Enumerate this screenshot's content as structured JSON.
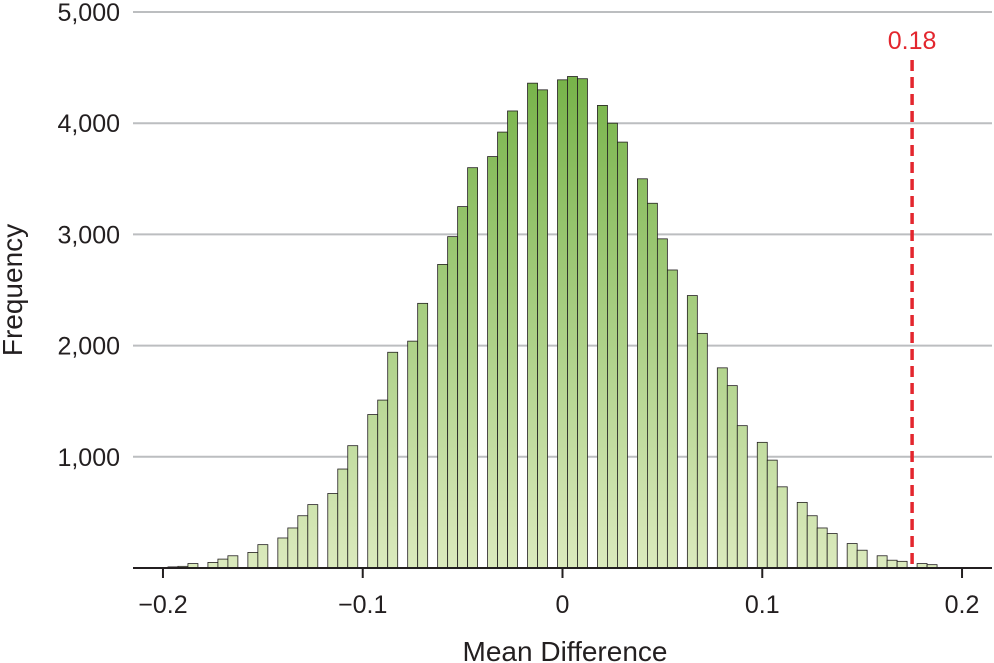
{
  "chart_data": {
    "type": "bar",
    "xlabel": "Mean Difference",
    "ylabel": "Frequency",
    "xlim": [
      -0.215,
      0.215
    ],
    "ylim": [
      0,
      5000
    ],
    "grid": "horizontal",
    "x_ticks": [
      -0.2,
      -0.1,
      0,
      0.1,
      0.2
    ],
    "x_tick_labels": [
      "−0.2",
      "−0.1",
      "0",
      "0.1",
      "0.2"
    ],
    "y_ticks": [
      1000,
      2000,
      3000,
      4000,
      5000
    ],
    "y_tick_labels": [
      "1,000",
      "2,000",
      "3,000",
      "4,000",
      "5,000"
    ],
    "bin_width": 0.005,
    "bins": [
      {
        "x": -0.195,
        "value": 10
      },
      {
        "x": -0.19,
        "value": 15
      },
      {
        "x": -0.185,
        "value": 40
      },
      {
        "x": -0.18,
        "value": 0
      },
      {
        "x": -0.175,
        "value": 50
      },
      {
        "x": -0.17,
        "value": 80
      },
      {
        "x": -0.165,
        "value": 110
      },
      {
        "x": -0.16,
        "value": 0
      },
      {
        "x": -0.155,
        "value": 140
      },
      {
        "x": -0.15,
        "value": 210
      },
      {
        "x": -0.145,
        "value": 0
      },
      {
        "x": -0.14,
        "value": 270
      },
      {
        "x": -0.135,
        "value": 360
      },
      {
        "x": -0.13,
        "value": 470
      },
      {
        "x": -0.125,
        "value": 570
      },
      {
        "x": -0.12,
        "value": 0
      },
      {
        "x": -0.115,
        "value": 670
      },
      {
        "x": -0.11,
        "value": 890
      },
      {
        "x": -0.105,
        "value": 1100
      },
      {
        "x": -0.1,
        "value": 0
      },
      {
        "x": -0.095,
        "value": 1380
      },
      {
        "x": -0.09,
        "value": 1510
      },
      {
        "x": -0.085,
        "value": 1940
      },
      {
        "x": -0.08,
        "value": 0
      },
      {
        "x": -0.075,
        "value": 2040
      },
      {
        "x": -0.07,
        "value": 2380
      },
      {
        "x": -0.065,
        "value": 0
      },
      {
        "x": -0.06,
        "value": 2730
      },
      {
        "x": -0.055,
        "value": 2980
      },
      {
        "x": -0.05,
        "value": 3250
      },
      {
        "x": -0.045,
        "value": 3600
      },
      {
        "x": -0.04,
        "value": 0
      },
      {
        "x": -0.035,
        "value": 3700
      },
      {
        "x": -0.03,
        "value": 3920
      },
      {
        "x": -0.025,
        "value": 4110
      },
      {
        "x": -0.02,
        "value": 0
      },
      {
        "x": -0.015,
        "value": 4360
      },
      {
        "x": -0.01,
        "value": 4300
      },
      {
        "x": -0.005,
        "value": 0
      },
      {
        "x": 0.0,
        "value": 4390
      },
      {
        "x": 0.005,
        "value": 4420
      },
      {
        "x": 0.01,
        "value": 4400
      },
      {
        "x": 0.015,
        "value": 0
      },
      {
        "x": 0.02,
        "value": 4160
      },
      {
        "x": 0.025,
        "value": 4000
      },
      {
        "x": 0.03,
        "value": 3830
      },
      {
        "x": 0.035,
        "value": 0
      },
      {
        "x": 0.04,
        "value": 3500
      },
      {
        "x": 0.045,
        "value": 3280
      },
      {
        "x": 0.05,
        "value": 2960
      },
      {
        "x": 0.055,
        "value": 2680
      },
      {
        "x": 0.06,
        "value": 0
      },
      {
        "x": 0.065,
        "value": 2450
      },
      {
        "x": 0.07,
        "value": 2110
      },
      {
        "x": 0.075,
        "value": 0
      },
      {
        "x": 0.08,
        "value": 1800
      },
      {
        "x": 0.085,
        "value": 1640
      },
      {
        "x": 0.09,
        "value": 1280
      },
      {
        "x": 0.095,
        "value": 0
      },
      {
        "x": 0.1,
        "value": 1130
      },
      {
        "x": 0.105,
        "value": 970
      },
      {
        "x": 0.11,
        "value": 730
      },
      {
        "x": 0.115,
        "value": 0
      },
      {
        "x": 0.12,
        "value": 590
      },
      {
        "x": 0.125,
        "value": 470
      },
      {
        "x": 0.13,
        "value": 360
      },
      {
        "x": 0.135,
        "value": 310
      },
      {
        "x": 0.14,
        "value": 0
      },
      {
        "x": 0.145,
        "value": 220
      },
      {
        "x": 0.15,
        "value": 160
      },
      {
        "x": 0.155,
        "value": 0
      },
      {
        "x": 0.16,
        "value": 110
      },
      {
        "x": 0.165,
        "value": 70
      },
      {
        "x": 0.17,
        "value": 60
      },
      {
        "x": 0.175,
        "value": 0
      },
      {
        "x": 0.18,
        "value": 40
      },
      {
        "x": 0.185,
        "value": 30
      }
    ],
    "annotations": [
      {
        "type": "vline",
        "x": 0.175,
        "label": "0.18",
        "color": "#e3262e",
        "style": "dashed"
      }
    ],
    "colors": {
      "bar_top": "#6aac3a",
      "bar_bottom": "#dbeabd",
      "bar_outline": "#231f20",
      "grid": "#bcbec0",
      "axis": "#231f20"
    }
  }
}
